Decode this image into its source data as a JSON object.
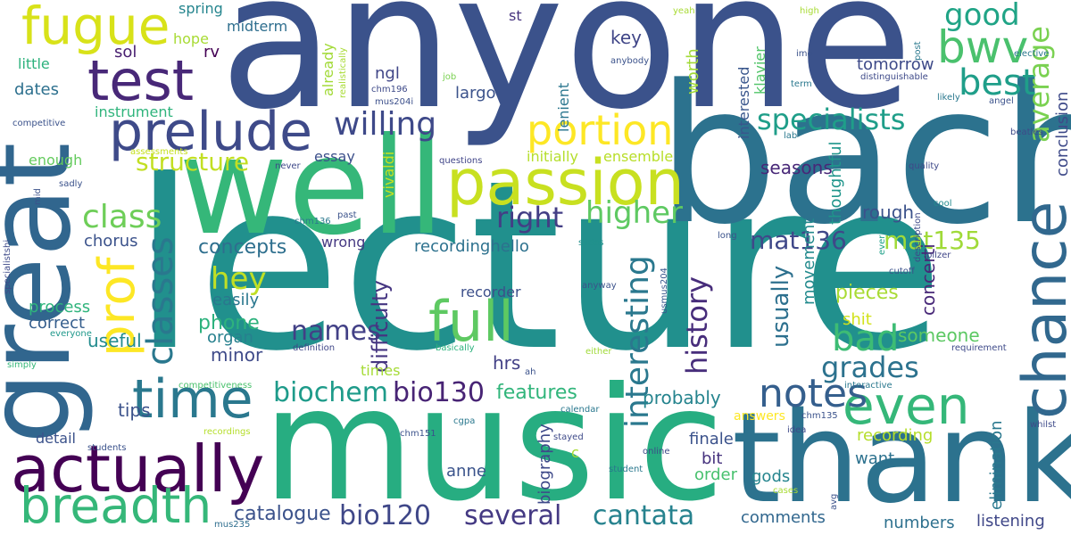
{
  "words": [
    {
      "text": "anyone",
      "color": "#3b528b"
    },
    {
      "text": "lecture",
      "color": "#21908d"
    },
    {
      "text": "bach",
      "color": "#2c728e"
    },
    {
      "text": "music",
      "color": "#27ad81"
    },
    {
      "text": "great",
      "color": "#31668e"
    },
    {
      "text": "well",
      "color": "#35b779"
    },
    {
      "text": "thank",
      "color": "#2c728e"
    },
    {
      "text": "passion",
      "color": "#c8e020"
    },
    {
      "text": "prelude",
      "color": "#3e4a89"
    },
    {
      "text": "test",
      "color": "#482878"
    },
    {
      "text": "fugue",
      "color": "#d8e219"
    },
    {
      "text": "actually",
      "color": "#440154"
    },
    {
      "text": "time",
      "color": "#2a788e"
    },
    {
      "text": "breadth",
      "color": "#35b779"
    },
    {
      "text": "full",
      "color": "#5ec962"
    },
    {
      "text": "prof",
      "color": "#fde725"
    },
    {
      "text": "chance",
      "color": "#31688e"
    },
    {
      "text": "even",
      "color": "#35b779"
    },
    {
      "text": "bwv",
      "color": "#4ac16d"
    },
    {
      "text": "best",
      "color": "#1f9e89"
    },
    {
      "text": "portion",
      "color": "#fde725"
    },
    {
      "text": "average",
      "color": "#7ad151"
    },
    {
      "text": "notes",
      "color": "#355f8d"
    },
    {
      "text": "classes",
      "color": "#2a788e"
    },
    {
      "text": "class",
      "color": "#6ece58"
    },
    {
      "text": "willing",
      "color": "#3e4989"
    },
    {
      "text": "right",
      "color": "#433e85"
    },
    {
      "text": "higher",
      "color": "#5ec962"
    },
    {
      "text": "specialists",
      "color": "#1f9e89"
    },
    {
      "text": "structure",
      "color": "#c2df23"
    },
    {
      "text": "good",
      "color": "#20a486"
    },
    {
      "text": "interesting",
      "color": "#2a788e"
    },
    {
      "text": "history",
      "color": "#472d7b"
    },
    {
      "text": "mat136",
      "color": "#3f4889"
    },
    {
      "text": "mat135",
      "color": "#a0da39"
    },
    {
      "text": "bad",
      "color": "#3dbc74"
    },
    {
      "text": "grades",
      "color": "#2c728e"
    },
    {
      "text": "hey",
      "color": "#c0df25"
    },
    {
      "text": "names",
      "color": "#424086"
    },
    {
      "text": "biochem",
      "color": "#1e9b8a"
    },
    {
      "text": "bio130",
      "color": "#482475"
    },
    {
      "text": "bio120",
      "color": "#3f4788"
    },
    {
      "text": "several",
      "color": "#443983"
    },
    {
      "text": "cantata",
      "color": "#26828e"
    },
    {
      "text": "catalogue",
      "color": "#3b528b"
    },
    {
      "text": "features",
      "color": "#31b57b"
    },
    {
      "text": "probably",
      "color": "#25848e"
    },
    {
      "text": "usually",
      "color": "#2d708e"
    },
    {
      "text": "difficulty",
      "color": "#453581"
    },
    {
      "text": "concepts",
      "color": "#2e6f8e"
    },
    {
      "text": "phone",
      "color": "#2db27d"
    },
    {
      "text": "organ",
      "color": "#27808e"
    },
    {
      "text": "minor",
      "color": "#3e4a89"
    },
    {
      "text": "useful",
      "color": "#228b8d"
    },
    {
      "text": "correct",
      "color": "#355e8d"
    },
    {
      "text": "process",
      "color": "#2fb47c"
    },
    {
      "text": "tips",
      "color": "#3b528b"
    },
    {
      "text": "someone",
      "color": "#5cc863"
    },
    {
      "text": "pieces",
      "color": "#a8db34"
    },
    {
      "text": "shit",
      "color": "#d2e21b"
    },
    {
      "text": "seasons",
      "color": "#482878"
    },
    {
      "text": "rough",
      "color": "#3b528b"
    },
    {
      "text": "movement",
      "color": "#238a8d"
    },
    {
      "text": "thoughtful",
      "color": "#1f958b"
    },
    {
      "text": "concerti",
      "color": "#482878"
    },
    {
      "text": "conclusion",
      "color": "#3e4a89"
    },
    {
      "text": "elimination",
      "color": "#2a788e"
    },
    {
      "text": "listening",
      "color": "#3f4788"
    },
    {
      "text": "numbers",
      "color": "#2d708e"
    },
    {
      "text": "recording",
      "color": "#b5de2b"
    },
    {
      "text": "want",
      "color": "#2c718e"
    },
    {
      "text": "finale",
      "color": "#3b528b"
    },
    {
      "text": "bit",
      "color": "#46327e"
    },
    {
      "text": "order",
      "color": "#48c16e"
    },
    {
      "text": "gods",
      "color": "#25858e"
    },
    {
      "text": "comments",
      "color": "#31678e"
    },
    {
      "text": "answers",
      "color": "#fde725"
    },
    {
      "text": "anne",
      "color": "#3a538b"
    },
    {
      "text": "biography",
      "color": "#3e4989"
    },
    {
      "text": "recordinghello",
      "color": "#2d718e"
    },
    {
      "text": "recorder",
      "color": "#3c4f8a"
    },
    {
      "text": "ensemble",
      "color": "#b8de29"
    },
    {
      "text": "initially",
      "color": "#b4de2c"
    },
    {
      "text": "essay",
      "color": "#3c508b"
    },
    {
      "text": "vivaldi",
      "color": "#c5e021"
    },
    {
      "text": "wrong",
      "color": "#453882"
    },
    {
      "text": "easily",
      "color": "#2a778e"
    },
    {
      "text": "hrs",
      "color": "#424086"
    },
    {
      "text": "times",
      "color": "#a5db36"
    },
    {
      "text": "key",
      "color": "#404688"
    },
    {
      "text": "worth",
      "color": "#a2da37"
    },
    {
      "text": "tomorrow",
      "color": "#3e4a89"
    },
    {
      "text": "interested",
      "color": "#39568c"
    },
    {
      "text": "klavier",
      "color": "#52c569"
    },
    {
      "text": "lenient",
      "color": "#2a768e"
    },
    {
      "text": "largo",
      "color": "#3b528b"
    },
    {
      "text": "ngl",
      "color": "#404688"
    },
    {
      "text": "already",
      "color": "#a2da37"
    },
    {
      "text": "sol",
      "color": "#481f70"
    },
    {
      "text": "rv",
      "color": "#440154"
    },
    {
      "text": "hope",
      "color": "#a8db34"
    },
    {
      "text": "midterm",
      "color": "#2e6e8e"
    },
    {
      "text": "spring",
      "color": "#25858e"
    },
    {
      "text": "little",
      "color": "#2db27d"
    },
    {
      "text": "dates",
      "color": "#2d708e"
    },
    {
      "text": "instrument",
      "color": "#2fb47c"
    },
    {
      "text": "enough",
      "color": "#65cb5e"
    },
    {
      "text": "chorus",
      "color": "#3b528b"
    },
    {
      "text": "detail",
      "color": "#3b528b"
    },
    {
      "text": "competitive",
      "color": "#3b528b"
    },
    {
      "text": "st",
      "color": "#46337e"
    },
    {
      "text": "chm196",
      "color": "#3e4a89"
    },
    {
      "text": "mus204i",
      "color": "#3c508b"
    },
    {
      "text": "realistically",
      "color": "#a8db34"
    },
    {
      "text": "job",
      "color": "#7ad151"
    },
    {
      "text": "questions",
      "color": "#404588"
    },
    {
      "text": "assessments",
      "color": "#c5e021"
    },
    {
      "text": "never",
      "color": "#3e4989"
    },
    {
      "text": "chm136",
      "color": "#2a788e"
    },
    {
      "text": "past",
      "color": "#3b528b"
    },
    {
      "text": "sadly",
      "color": "#3b528b"
    },
    {
      "text": "mid",
      "color": "#3b528b"
    },
    {
      "text": "specialistshi",
      "color": "#3e4a89"
    },
    {
      "text": "competitiveness",
      "color": "#4ac16d"
    },
    {
      "text": "cgpa",
      "color": "#2a788e"
    },
    {
      "text": "chm151",
      "color": "#3b528b"
    },
    {
      "text": "recordings",
      "color": "#b5de2b"
    },
    {
      "text": "students",
      "color": "#3b528b"
    },
    {
      "text": "mus235",
      "color": "#2e6e8e"
    },
    {
      "text": "simply",
      "color": "#35b779"
    },
    {
      "text": "everyone",
      "color": "#1f988b"
    },
    {
      "text": "definition",
      "color": "#3f4788"
    },
    {
      "text": "basically",
      "color": "#2db27d"
    },
    {
      "text": "ah",
      "color": "#3b528b"
    },
    {
      "text": "either",
      "color": "#a0da39"
    },
    {
      "text": "calendar",
      "color": "#2a788e"
    },
    {
      "text": "student",
      "color": "#2a788e"
    },
    {
      "text": "online",
      "color": "#3e4a89"
    },
    {
      "text": "stayed",
      "color": "#3e4a89"
    },
    {
      "text": "slides",
      "color": "#21918c"
    },
    {
      "text": "anyway",
      "color": "#3b528b"
    },
    {
      "text": "usmus204",
      "color": "#39568c"
    },
    {
      "text": "long",
      "color": "#3b528b"
    },
    {
      "text": "ever",
      "color": "#1fa088"
    },
    {
      "text": "cutoff",
      "color": "#3b528b"
    },
    {
      "text": "pilzer",
      "color": "#404688"
    },
    {
      "text": "requirement",
      "color": "#3e4a89"
    },
    {
      "text": "interactive",
      "color": "#2a788e"
    },
    {
      "text": "chm135",
      "color": "#3b528b"
    },
    {
      "text": "idea",
      "color": "#3e4989"
    },
    {
      "text": "cases",
      "color": "#a8db34"
    },
    {
      "text": "avg",
      "color": "#3b528b"
    },
    {
      "text": "whilst",
      "color": "#3e4a89"
    },
    {
      "text": "cool",
      "color": "#238a8d"
    },
    {
      "text": "description",
      "color": "#3e4a89"
    },
    {
      "text": "quality",
      "color": "#3e4989"
    },
    {
      "text": "beatles",
      "color": "#3e4a89"
    },
    {
      "text": "lab",
      "color": "#2a788e"
    },
    {
      "text": "angel",
      "color": "#3b528b"
    },
    {
      "text": "likely",
      "color": "#2a788e"
    },
    {
      "text": "distinguishable",
      "color": "#3e4a89"
    },
    {
      "text": "term",
      "color": "#2a788e"
    },
    {
      "text": "imo",
      "color": "#3b528b"
    },
    {
      "text": "post",
      "color": "#2a788e"
    },
    {
      "text": "elective",
      "color": "#2a788e"
    },
    {
      "text": "high",
      "color": "#a8db34"
    },
    {
      "text": "yeah",
      "color": "#a8db34"
    },
    {
      "text": "anybody",
      "color": "#3b528b"
    },
    {
      "text": "c",
      "color": "#a8db34"
    }
  ]
}
